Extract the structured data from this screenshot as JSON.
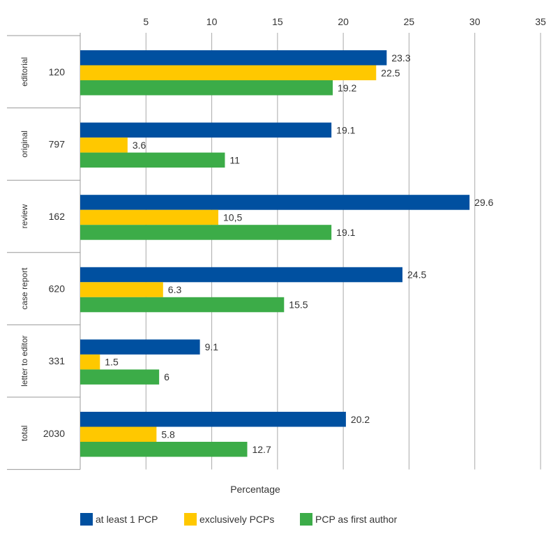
{
  "chart_data": {
    "type": "bar",
    "orientation": "horizontal",
    "categories": [
      "editorial",
      "original",
      "review",
      "case report",
      "letter to editor",
      "total"
    ],
    "counts": [
      "120",
      "797",
      "162",
      "620",
      "331",
      "2030"
    ],
    "series": [
      {
        "name": "at least 1 PCP",
        "color": "#0050a0",
        "values": [
          23.3,
          19.1,
          29.6,
          24.5,
          9.1,
          20.2
        ],
        "labels": [
          "23.3",
          "19.1",
          "29.6",
          "24.5",
          "9.1",
          "20.2"
        ]
      },
      {
        "name": "exclusively PCPs",
        "color": "#ffc800",
        "values": [
          22.5,
          3.6,
          10.5,
          6.3,
          1.5,
          5.8
        ],
        "labels": [
          "22.5",
          "3.6",
          "10,5",
          "6.3",
          "1.5",
          "5.8"
        ]
      },
      {
        "name": "PCP as first author",
        "color": "#3cac48",
        "values": [
          19.2,
          11,
          19.1,
          15.5,
          6,
          12.7
        ],
        "labels": [
          "19.2",
          "11",
          "19.1",
          "15.5",
          "6",
          "12.7"
        ]
      }
    ],
    "xlabel": "Percentage",
    "xlim": [
      0,
      35
    ],
    "xticks": [
      5,
      10,
      15,
      20,
      25,
      30,
      35
    ],
    "grid": true,
    "axis_position": "top",
    "legend": "bottom"
  }
}
